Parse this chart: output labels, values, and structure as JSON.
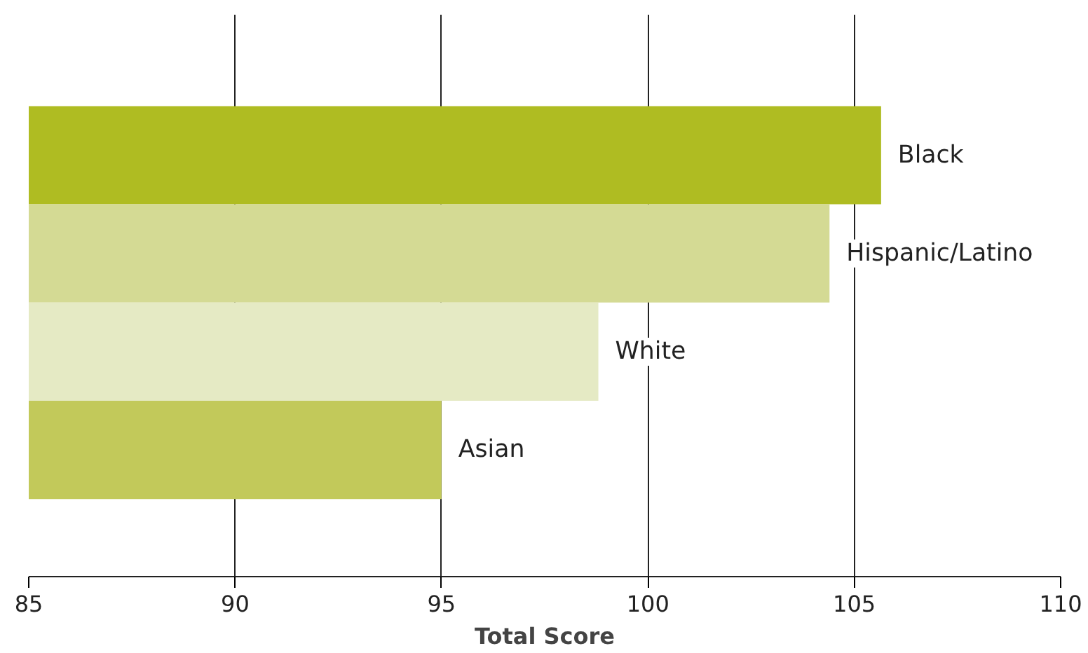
{
  "chart_data": {
    "type": "bar",
    "orientation": "horizontal",
    "xlabel": "Total Score",
    "categories": [
      "Black",
      "Hispanic/Latino",
      "White",
      "Asian"
    ],
    "values": [
      105.65,
      104.4,
      98.8,
      95.0
    ],
    "colors": [
      "#afbc22",
      "#d4da94",
      "#e5eac4",
      "#c2c95a"
    ],
    "xlim": [
      85,
      110
    ],
    "xticks": [
      85,
      90,
      95,
      100,
      105,
      110
    ],
    "grid": "x"
  }
}
